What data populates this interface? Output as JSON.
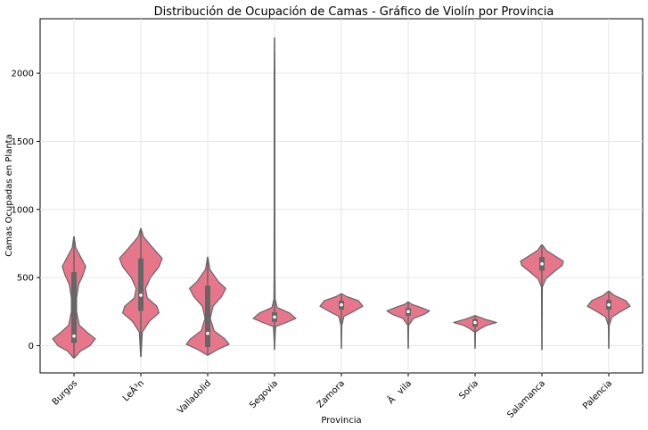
{
  "chart_data": {
    "type": "violin",
    "title": "Distribución de Ocupación de Camas - Gráfico de Violín por Provincia",
    "xlabel": "Provincia",
    "ylabel": "Camas Ocupadas en Planta",
    "ylim": [
      -200,
      2400
    ],
    "yticks": [
      0,
      500,
      1000,
      1500,
      2000
    ],
    "grid": true,
    "violin_color": "#e8768a",
    "line_color": "#666666",
    "categories": [
      "Burgos",
      "LeÃ³n",
      "Valladolid",
      "Segovia",
      "Zamora",
      "Ãvila",
      "Soria",
      "Salamanca",
      "Palencia"
    ],
    "series": [
      {
        "category": "Burgos",
        "min": -90,
        "max": 800,
        "q1": 20,
        "median": 70,
        "q3": 540,
        "density": [
          [
            -90,
            0.02
          ],
          [
            -40,
            0.3
          ],
          [
            0,
            0.75
          ],
          [
            50,
            1.0
          ],
          [
            100,
            0.6
          ],
          [
            150,
            0.25
          ],
          [
            250,
            0.12
          ],
          [
            350,
            0.12
          ],
          [
            450,
            0.22
          ],
          [
            520,
            0.42
          ],
          [
            580,
            0.55
          ],
          [
            640,
            0.35
          ],
          [
            720,
            0.08
          ],
          [
            800,
            0.01
          ]
        ]
      },
      {
        "category": "LeÃ³n",
        "min": -80,
        "max": 860,
        "q1": 255,
        "median": 370,
        "q3": 640,
        "density": [
          [
            -80,
            0.01
          ],
          [
            100,
            0.07
          ],
          [
            180,
            0.4
          ],
          [
            240,
            0.85
          ],
          [
            290,
            0.75
          ],
          [
            350,
            0.3
          ],
          [
            420,
            0.22
          ],
          [
            500,
            0.45
          ],
          [
            580,
            0.85
          ],
          [
            640,
            1.0
          ],
          [
            720,
            0.55
          ],
          [
            800,
            0.12
          ],
          [
            860,
            0.01
          ]
        ]
      },
      {
        "category": "Valladolid",
        "min": -70,
        "max": 650,
        "q1": -10,
        "median": 90,
        "q3": 440,
        "density": [
          [
            -70,
            0.02
          ],
          [
            -30,
            0.45
          ],
          [
            10,
            1.0
          ],
          [
            50,
            0.8
          ],
          [
            110,
            0.3
          ],
          [
            200,
            0.12
          ],
          [
            290,
            0.25
          ],
          [
            360,
            0.65
          ],
          [
            420,
            0.85
          ],
          [
            470,
            0.5
          ],
          [
            560,
            0.1
          ],
          [
            650,
            0.01
          ]
        ]
      },
      {
        "category": "Segovia",
        "min": -30,
        "max": 2260,
        "q1": 175,
        "median": 210,
        "q3": 245,
        "density": [
          [
            -30,
            0.0
          ],
          [
            140,
            0.05
          ],
          [
            170,
            0.55
          ],
          [
            200,
            1.0
          ],
          [
            240,
            0.7
          ],
          [
            280,
            0.12
          ],
          [
            340,
            0.03
          ],
          [
            500,
            0.02
          ],
          [
            1000,
            0.015
          ],
          [
            1500,
            0.015
          ],
          [
            2000,
            0.015
          ],
          [
            2260,
            0.0
          ]
        ]
      },
      {
        "category": "Zamora",
        "min": -20,
        "max": 380,
        "q1": 265,
        "median": 300,
        "q3": 330,
        "density": [
          [
            -20,
            0.0
          ],
          [
            150,
            0.02
          ],
          [
            215,
            0.12
          ],
          [
            250,
            0.55
          ],
          [
            290,
            1.0
          ],
          [
            330,
            0.8
          ],
          [
            360,
            0.25
          ],
          [
            380,
            0.02
          ]
        ]
      },
      {
        "category": "Ãvila",
        "min": -20,
        "max": 320,
        "q1": 220,
        "median": 250,
        "q3": 275,
        "density": [
          [
            -20,
            0.0
          ],
          [
            150,
            0.02
          ],
          [
            200,
            0.25
          ],
          [
            230,
            0.75
          ],
          [
            255,
            1.0
          ],
          [
            280,
            0.6
          ],
          [
            305,
            0.15
          ],
          [
            320,
            0.02
          ]
        ]
      },
      {
        "category": "Soria",
        "min": -20,
        "max": 220,
        "q1": 140,
        "median": 170,
        "q3": 195,
        "density": [
          [
            -20,
            0.0
          ],
          [
            100,
            0.02
          ],
          [
            125,
            0.25
          ],
          [
            150,
            0.55
          ],
          [
            170,
            1.0
          ],
          [
            195,
            0.45
          ],
          [
            220,
            0.03
          ]
        ]
      },
      {
        "category": "Salamanca",
        "min": -30,
        "max": 740,
        "q1": 550,
        "median": 600,
        "q3": 650,
        "density": [
          [
            -30,
            0.0
          ],
          [
            430,
            0.02
          ],
          [
            490,
            0.18
          ],
          [
            540,
            0.55
          ],
          [
            590,
            0.95
          ],
          [
            620,
            1.0
          ],
          [
            660,
            0.6
          ],
          [
            700,
            0.2
          ],
          [
            740,
            0.02
          ]
        ]
      },
      {
        "category": "Palencia",
        "min": -20,
        "max": 400,
        "q1": 265,
        "median": 300,
        "q3": 335,
        "density": [
          [
            -20,
            0.0
          ],
          [
            150,
            0.02
          ],
          [
            210,
            0.15
          ],
          [
            250,
            0.55
          ],
          [
            290,
            1.0
          ],
          [
            330,
            0.8
          ],
          [
            370,
            0.25
          ],
          [
            400,
            0.02
          ]
        ]
      }
    ]
  }
}
